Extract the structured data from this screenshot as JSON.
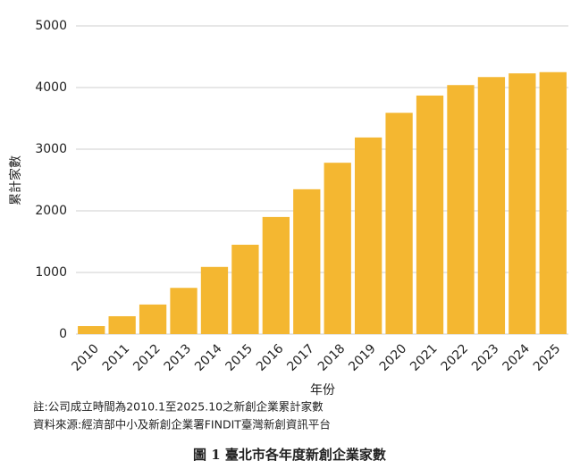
{
  "chart_data": {
    "type": "bar",
    "x_label": "年份",
    "y_label": "累計家數",
    "categories": [
      "2010",
      "2011",
      "2012",
      "2013",
      "2014",
      "2015",
      "2016",
      "2017",
      "2018",
      "2019",
      "2020",
      "2021",
      "2022",
      "2023",
      "2024",
      "2025"
    ],
    "values": [
      130,
      290,
      480,
      750,
      1090,
      1450,
      1900,
      2350,
      2780,
      3190,
      3590,
      3870,
      4040,
      4170,
      4230,
      4250
    ],
    "color": "#f4b731",
    "ylim": [
      0,
      5000
    ],
    "yticks": [
      0,
      1000,
      2000,
      3000,
      4000,
      5000
    ],
    "grid": true,
    "notes": [
      "註:公司成立時間為2010.1至2025.10之新創企業累計家數",
      "資料來源:經濟部中小及新創企業署FINDIT臺灣新創資訊平台"
    ],
    "caption": "圖 1  臺北市各年度新創企業家數"
  }
}
